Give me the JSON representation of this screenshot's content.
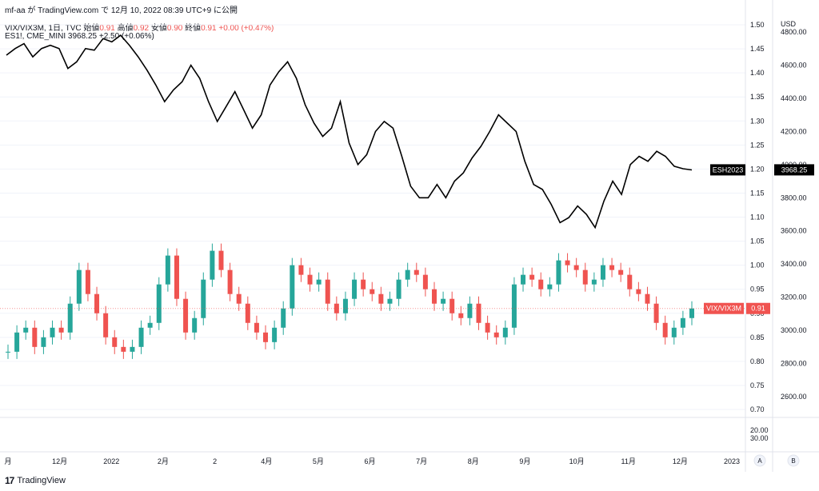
{
  "header": {
    "attribution": "mf-aa が TradingView.com で 12月 10, 2022 08:39 UTC+9 に公開"
  },
  "legend": {
    "vix_line": {
      "symbol": "VIX/VIX3M, 1日, TVC",
      "o_label": "始値",
      "o": "0.91",
      "h_label": "高値",
      "h": "0.92",
      "l_label": "安値",
      "l": "0.90",
      "c_label": "終値",
      "c": "0.91",
      "chg": "+0.00 (+0.47%)"
    },
    "es_line": {
      "symbol": "ES1!, CME_MINI",
      "last": "3968.25",
      "chg": "+2.50 (+0.06%)"
    }
  },
  "footer": {
    "brand": "TradingView",
    "logo": "17"
  },
  "axis_buttons": {
    "auto": "A",
    "log": "B"
  },
  "colors": {
    "up": "#26a69a",
    "down": "#ef5350",
    "line": "#000000",
    "grid": "#f0f3fa",
    "tag_dark": "#000000",
    "tag_red": "#f05350"
  },
  "chart_data": {
    "type": "line",
    "x_axis": {
      "labels": [
        "月",
        "12月",
        "2022",
        "2月",
        "2",
        "4月",
        "5月",
        "6月",
        "7月",
        "8月",
        "9月",
        "10月",
        "11月",
        "12月",
        "2023"
      ]
    },
    "left_axis": {
      "ticks": [
        "1.50",
        "1.45",
        "1.40",
        "1.35",
        "1.30",
        "1.25",
        "1.20",
        "1.15",
        "1.10",
        "1.05",
        "1.00",
        "0.95",
        "0.90",
        "0.85",
        "0.80",
        "0.75",
        "0.70"
      ],
      "lower_ticks": [
        "20.00",
        "30.00"
      ]
    },
    "right_axis": {
      "unit": "USD",
      "ticks": [
        "4800.00",
        "4600.00",
        "4400.00",
        "4200.00",
        "4000.00",
        "3800.00",
        "3600.00",
        "3400.00",
        "3200.00",
        "3000.00",
        "2800.00",
        "2600.00"
      ]
    },
    "es_series": {
      "name": "ESH2023",
      "last": "3968.25",
      "values": [
        4660,
        4700,
        4730,
        4650,
        4700,
        4720,
        4700,
        4580,
        4620,
        4700,
        4690,
        4760,
        4740,
        4780,
        4720,
        4650,
        4570,
        4480,
        4380,
        4450,
        4500,
        4600,
        4520,
        4380,
        4260,
        4350,
        4440,
        4330,
        4220,
        4300,
        4480,
        4560,
        4620,
        4520,
        4360,
        4250,
        4170,
        4220,
        4380,
        4130,
        4000,
        4060,
        4200,
        4260,
        4220,
        4050,
        3870,
        3800,
        3800,
        3880,
        3800,
        3900,
        3950,
        4040,
        4110,
        4200,
        4300,
        4250,
        4200,
        4020,
        3880,
        3850,
        3760,
        3650,
        3680,
        3750,
        3700,
        3620,
        3780,
        3900,
        3820,
        4000,
        4050,
        4020,
        4080,
        4050,
        3990,
        3975,
        3968
      ]
    },
    "vix_series": {
      "name": "VIX/VIX3M",
      "last": "0.91",
      "values": [
        0.82,
        0.86,
        0.87,
        0.83,
        0.85,
        0.87,
        0.86,
        0.92,
        0.99,
        0.94,
        0.9,
        0.85,
        0.83,
        0.82,
        0.83,
        0.87,
        0.88,
        0.96,
        1.02,
        0.93,
        0.86,
        0.89,
        0.97,
        1.03,
        0.99,
        0.94,
        0.92,
        0.88,
        0.86,
        0.84,
        0.87,
        0.91,
        1.0,
        0.98,
        0.96,
        0.97,
        0.92,
        0.9,
        0.93,
        0.97,
        0.95,
        0.94,
        0.92,
        0.93,
        0.97,
        0.99,
        0.98,
        0.95,
        0.92,
        0.93,
        0.9,
        0.89,
        0.92,
        0.88,
        0.86,
        0.85,
        0.87,
        0.96,
        0.98,
        0.97,
        0.95,
        0.96,
        1.01,
        1.0,
        0.99,
        0.96,
        0.97,
        1.0,
        0.99,
        0.98,
        0.95,
        0.94,
        0.92,
        0.88,
        0.85,
        0.87,
        0.89,
        0.91
      ]
    }
  }
}
